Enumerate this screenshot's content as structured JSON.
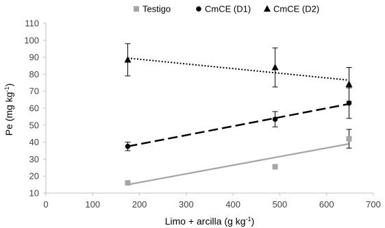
{
  "chart_data": {
    "type": "scatter",
    "xlabel": "Limo + arcilla (g kg",
    "xlabel_sup": "-1",
    "xlabel_tail": ")",
    "ylabel": "Pe (mg kg",
    "ylabel_sup": "-1",
    "ylabel_tail": ")",
    "xlim": [
      0,
      700
    ],
    "ylim": [
      10,
      110
    ],
    "x_ticks": [
      "0",
      "100",
      "200",
      "300",
      "400",
      "500",
      "600",
      "700"
    ],
    "y_ticks": [
      "10",
      "20",
      "30",
      "40",
      "50",
      "60",
      "70",
      "80",
      "90",
      "100",
      "110"
    ],
    "grid": false,
    "legend_position": "top",
    "series": [
      {
        "name": "Testigo",
        "marker": "square",
        "color": "#a6a6a6",
        "line_style": "solid",
        "x": [
          175,
          490,
          648
        ],
        "y": [
          16,
          25.5,
          42
        ],
        "err": [
          0,
          0,
          5.5
        ],
        "trend": [
          [
            175,
            15
          ],
          [
            648,
            39
          ]
        ]
      },
      {
        "name": "CmCE  (D1)",
        "marker": "circle",
        "color": "#000000",
        "line_style": "dashed",
        "x": [
          175,
          490,
          648
        ],
        "y": [
          37.5,
          53.5,
          63
        ],
        "err": [
          2.5,
          4.5,
          9
        ],
        "trend": [
          [
            175,
            37.5
          ],
          [
            648,
            62.5
          ]
        ]
      },
      {
        "name": "CmCE  (D2)",
        "marker": "triangle",
        "color": "#000000",
        "line_style": "dotted",
        "x": [
          175,
          490,
          648
        ],
        "y": [
          88.5,
          84,
          74
        ],
        "err": [
          9.5,
          11.5,
          10
        ],
        "trend": [
          [
            175,
            89.5
          ],
          [
            648,
            76.5
          ]
        ]
      }
    ]
  }
}
